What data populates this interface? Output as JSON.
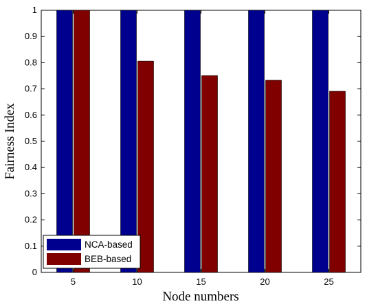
{
  "chart_data": {
    "type": "bar",
    "categories": [
      "5",
      "10",
      "15",
      "20",
      "25"
    ],
    "series": [
      {
        "name": "NCA-based",
        "color": "#00008f",
        "values": [
          1,
          1,
          1,
          1,
          1
        ]
      },
      {
        "name": "BEB-based",
        "color": "#800000",
        "values": [
          1,
          0.806,
          0.751,
          0.733,
          0.691
        ]
      }
    ],
    "xlabel": "Node numbers",
    "ylabel": "Fairness Index",
    "ylim": [
      0,
      1
    ],
    "yticks": [
      "0",
      "0.1",
      "0.2",
      "0.3",
      "0.4",
      "0.5",
      "0.6",
      "0.7",
      "0.8",
      "0.9",
      "1"
    ],
    "legend_position": "bottom-left",
    "grid": false
  }
}
